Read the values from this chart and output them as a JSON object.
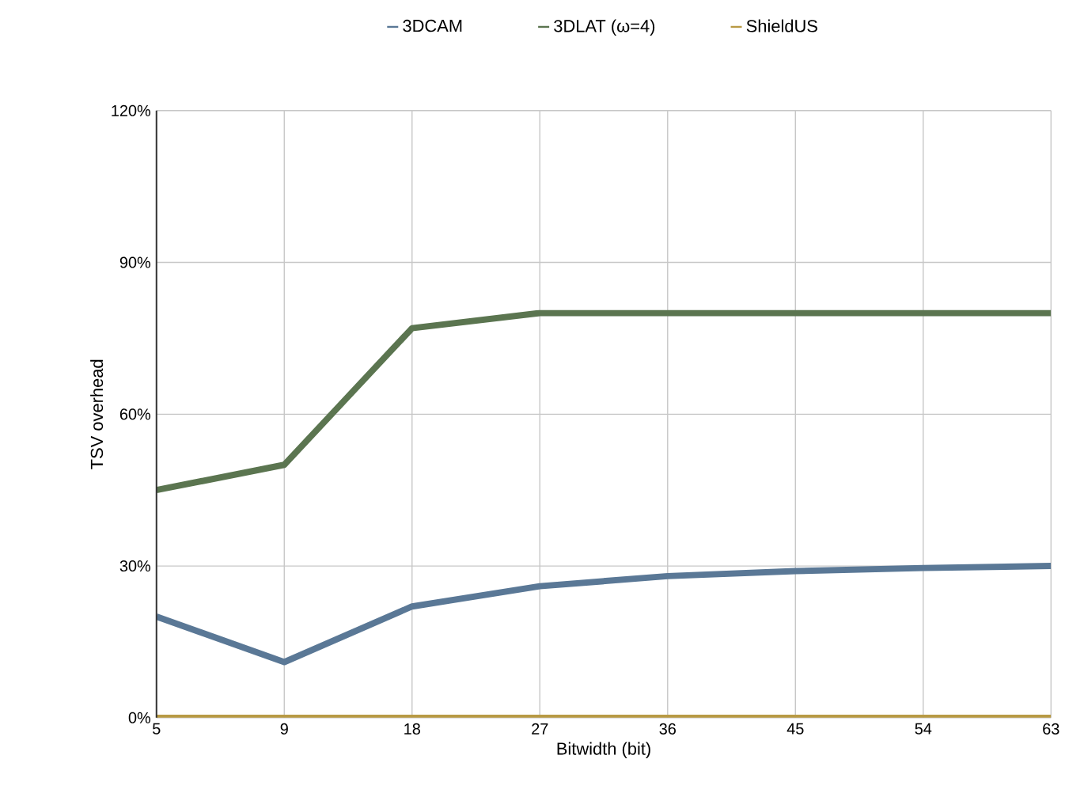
{
  "chart_data": {
    "type": "line",
    "xlabel": "Bitwidth (bit)",
    "ylabel": "TSV overhead",
    "categories": [
      "5",
      "9",
      "18",
      "27",
      "36",
      "45",
      "54",
      "63"
    ],
    "series": [
      {
        "name": "3DCAM",
        "color": "#5a7896",
        "values": [
          20,
          11,
          22,
          26,
          28,
          29,
          29.6,
          30
        ]
      },
      {
        "name": "3DLAT (ω=4)",
        "color": "#5b7550",
        "values": [
          45,
          50,
          77,
          80,
          80,
          80,
          80,
          80
        ]
      },
      {
        "name": "ShieldUS",
        "color": "#b89a45",
        "values": [
          0,
          0,
          0,
          0,
          0,
          0,
          0,
          0
        ]
      }
    ],
    "ylim": [
      0,
      120
    ],
    "yticks": [
      {
        "value": 0,
        "label": "0%"
      },
      {
        "value": 30,
        "label": "30%"
      },
      {
        "value": 60,
        "label": "60%"
      },
      {
        "value": 90,
        "label": "90%"
      },
      {
        "value": 120,
        "label": "120%"
      }
    ],
    "grid": true,
    "legend": "top"
  }
}
